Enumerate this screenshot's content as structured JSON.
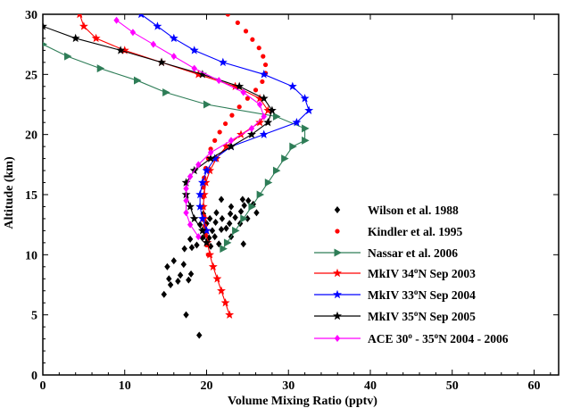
{
  "chart_data": {
    "type": "scatter",
    "xlabel": "Volume Mixing Ratio (pptv)",
    "ylabel": "Altitude (km)",
    "xlim": [
      0,
      63
    ],
    "ylim": [
      0,
      30
    ],
    "xticks": [
      0,
      10,
      20,
      30,
      40,
      50,
      60
    ],
    "yticks": [
      0,
      5,
      10,
      15,
      20,
      25,
      30
    ],
    "legend_position": "right",
    "series": [
      {
        "name": "Wilson et al. 1988",
        "color": "#000000",
        "marker": "diamond",
        "line": false,
        "points": [
          [
            19.1,
            3.3
          ],
          [
            17.5,
            5.0
          ],
          [
            14.8,
            6.7
          ],
          [
            15.6,
            7.5
          ],
          [
            16.5,
            7.8
          ],
          [
            17.8,
            7.9
          ],
          [
            15.4,
            8.0
          ],
          [
            16.8,
            8.3
          ],
          [
            18.1,
            8.4
          ],
          [
            15.2,
            9.0
          ],
          [
            17.2,
            9.2
          ],
          [
            16.0,
            9.5
          ],
          [
            17.3,
            10.5
          ],
          [
            18.2,
            10.6
          ],
          [
            18.8,
            10.8
          ],
          [
            20.5,
            10.7
          ],
          [
            21.5,
            10.9
          ],
          [
            24.5,
            10.9
          ],
          [
            18.0,
            11.3
          ],
          [
            19.5,
            11.4
          ],
          [
            20.3,
            11.4
          ],
          [
            21.0,
            11.5
          ],
          [
            23.0,
            11.5
          ],
          [
            19.8,
            12.0
          ],
          [
            20.7,
            12.0
          ],
          [
            21.8,
            12.1
          ],
          [
            22.4,
            12.2
          ],
          [
            19.2,
            12.5
          ],
          [
            20.0,
            12.6
          ],
          [
            21.1,
            12.7
          ],
          [
            22.8,
            12.6
          ],
          [
            24.1,
            12.6
          ],
          [
            20.4,
            13.0
          ],
          [
            21.9,
            13.0
          ],
          [
            23.5,
            13.1
          ],
          [
            25.0,
            13.0
          ],
          [
            19.6,
            13.4
          ],
          [
            21.2,
            13.5
          ],
          [
            22.9,
            13.4
          ],
          [
            24.2,
            13.6
          ],
          [
            26.1,
            13.5
          ],
          [
            23.0,
            14.0
          ],
          [
            24.6,
            14.1
          ],
          [
            25.7,
            14.2
          ],
          [
            21.8,
            14.6
          ],
          [
            24.4,
            14.6
          ],
          [
            25.1,
            14.5
          ]
        ]
      },
      {
        "name": "Kindler et al. 1995",
        "color": "#ff0000",
        "marker": "dot",
        "line": false,
        "points": [
          [
            20.2,
            10.0
          ],
          [
            20.0,
            10.8
          ],
          [
            19.9,
            11.6
          ],
          [
            19.8,
            12.4
          ],
          [
            19.7,
            13.2
          ],
          [
            19.6,
            14.0
          ],
          [
            19.6,
            14.8
          ],
          [
            19.6,
            15.6
          ],
          [
            19.7,
            16.4
          ],
          [
            19.9,
            17.2
          ],
          [
            20.2,
            18.0
          ],
          [
            20.5,
            18.8
          ],
          [
            21.0,
            19.5
          ],
          [
            21.6,
            20.2
          ],
          [
            22.3,
            20.9
          ],
          [
            23.1,
            21.6
          ],
          [
            24.0,
            22.3
          ],
          [
            25.0,
            23.0
          ],
          [
            26.0,
            23.7
          ],
          [
            26.8,
            24.4
          ],
          [
            27.2,
            25.1
          ],
          [
            27.2,
            25.8
          ],
          [
            26.9,
            26.5
          ],
          [
            26.4,
            27.2
          ],
          [
            25.6,
            27.9
          ],
          [
            24.8,
            28.6
          ],
          [
            23.8,
            29.3
          ],
          [
            22.6,
            30.0
          ],
          [
            21.6,
            30.7
          ],
          [
            20.4,
            31.3
          ]
        ]
      },
      {
        "name": "Nassar et al. 2006",
        "color": "#2e7d57",
        "marker": "triangle-right",
        "line": true,
        "points": [
          [
            22.0,
            10.5
          ],
          [
            22.5,
            11.0
          ],
          [
            23.5,
            12.0
          ],
          [
            24.5,
            13.0
          ],
          [
            25.5,
            14.0
          ],
          [
            26.5,
            15.0
          ],
          [
            27.5,
            16.0
          ],
          [
            28.5,
            17.0
          ],
          [
            29.5,
            18.0
          ],
          [
            30.5,
            19.0
          ],
          [
            32.0,
            19.5
          ],
          [
            32.0,
            20.5
          ],
          [
            28.5,
            21.5
          ],
          [
            20.0,
            22.5
          ],
          [
            15.0,
            23.5
          ],
          [
            11.5,
            24.5
          ],
          [
            7.0,
            25.5
          ],
          [
            3.0,
            26.5
          ],
          [
            0.0,
            27.5
          ]
        ]
      },
      {
        "name": "MkIV 34oN Sep 2003",
        "color": "#ff0000",
        "marker": "star",
        "line": true,
        "points": [
          [
            22.8,
            5.0
          ],
          [
            22.3,
            6.0
          ],
          [
            21.8,
            7.0
          ],
          [
            21.3,
            8.0
          ],
          [
            20.8,
            9.0
          ],
          [
            20.4,
            10.0
          ],
          [
            20.1,
            11.0
          ],
          [
            19.9,
            12.0
          ],
          [
            19.7,
            13.0
          ],
          [
            19.6,
            14.0
          ],
          [
            19.7,
            15.0
          ],
          [
            19.9,
            16.0
          ],
          [
            20.4,
            17.0
          ],
          [
            21.2,
            18.0
          ],
          [
            22.4,
            19.0
          ],
          [
            24.2,
            20.0
          ],
          [
            26.5,
            21.0
          ],
          [
            27.5,
            22.0
          ],
          [
            26.5,
            23.0
          ],
          [
            23.5,
            24.0
          ],
          [
            19.0,
            25.0
          ],
          [
            14.5,
            26.0
          ],
          [
            10.0,
            27.0
          ],
          [
            6.5,
            28.0
          ],
          [
            5.0,
            29.0
          ],
          [
            4.5,
            30.0
          ]
        ]
      },
      {
        "name": "MkIV 33oN Sep 2004",
        "color": "#0000ff",
        "marker": "star",
        "line": true,
        "points": [
          [
            20.0,
            12.0
          ],
          [
            19.5,
            13.0
          ],
          [
            19.2,
            14.0
          ],
          [
            19.2,
            15.0
          ],
          [
            19.5,
            16.0
          ],
          [
            20.0,
            17.0
          ],
          [
            21.0,
            18.0
          ],
          [
            23.0,
            19.0
          ],
          [
            27.0,
            20.0
          ],
          [
            31.0,
            21.0
          ],
          [
            32.5,
            22.0
          ],
          [
            32.0,
            23.0
          ],
          [
            30.5,
            24.0
          ],
          [
            27.0,
            25.0
          ],
          [
            22.0,
            26.0
          ],
          [
            18.5,
            27.0
          ],
          [
            16.0,
            28.0
          ],
          [
            14.0,
            29.0
          ],
          [
            12.0,
            30.0
          ]
        ]
      },
      {
        "name": "MkIV 35oN Sep 2005",
        "color": "#000000",
        "marker": "star",
        "line": true,
        "points": [
          [
            20.0,
            11.0
          ],
          [
            19.5,
            12.0
          ],
          [
            18.5,
            13.0
          ],
          [
            18.0,
            14.0
          ],
          [
            17.5,
            15.0
          ],
          [
            17.5,
            16.0
          ],
          [
            18.5,
            17.0
          ],
          [
            20.5,
            18.0
          ],
          [
            23.0,
            19.0
          ],
          [
            25.5,
            20.0
          ],
          [
            27.5,
            21.0
          ],
          [
            28.0,
            22.0
          ],
          [
            27.0,
            23.0
          ],
          [
            24.0,
            24.0
          ],
          [
            19.5,
            25.0
          ],
          [
            14.5,
            26.0
          ],
          [
            9.5,
            27.0
          ],
          [
            4.0,
            28.0
          ],
          [
            0.0,
            29.0
          ]
        ]
      },
      {
        "name": "ACE 30o - 35oN 2004 - 2006",
        "color": "#ff00ff",
        "marker": "diamond",
        "line": true,
        "points": [
          [
            19.0,
            11.5
          ],
          [
            18.0,
            12.5
          ],
          [
            17.5,
            13.5
          ],
          [
            17.5,
            14.5
          ],
          [
            17.5,
            15.5
          ],
          [
            18.0,
            16.5
          ],
          [
            19.0,
            17.5
          ],
          [
            20.5,
            18.5
          ],
          [
            23.0,
            19.5
          ],
          [
            25.5,
            20.5
          ],
          [
            27.0,
            21.5
          ],
          [
            26.5,
            22.5
          ],
          [
            24.5,
            23.5
          ],
          [
            21.5,
            24.5
          ],
          [
            18.5,
            25.5
          ],
          [
            16.0,
            26.5
          ],
          [
            13.5,
            27.5
          ],
          [
            11.0,
            28.5
          ],
          [
            9.0,
            29.5
          ]
        ]
      }
    ]
  }
}
